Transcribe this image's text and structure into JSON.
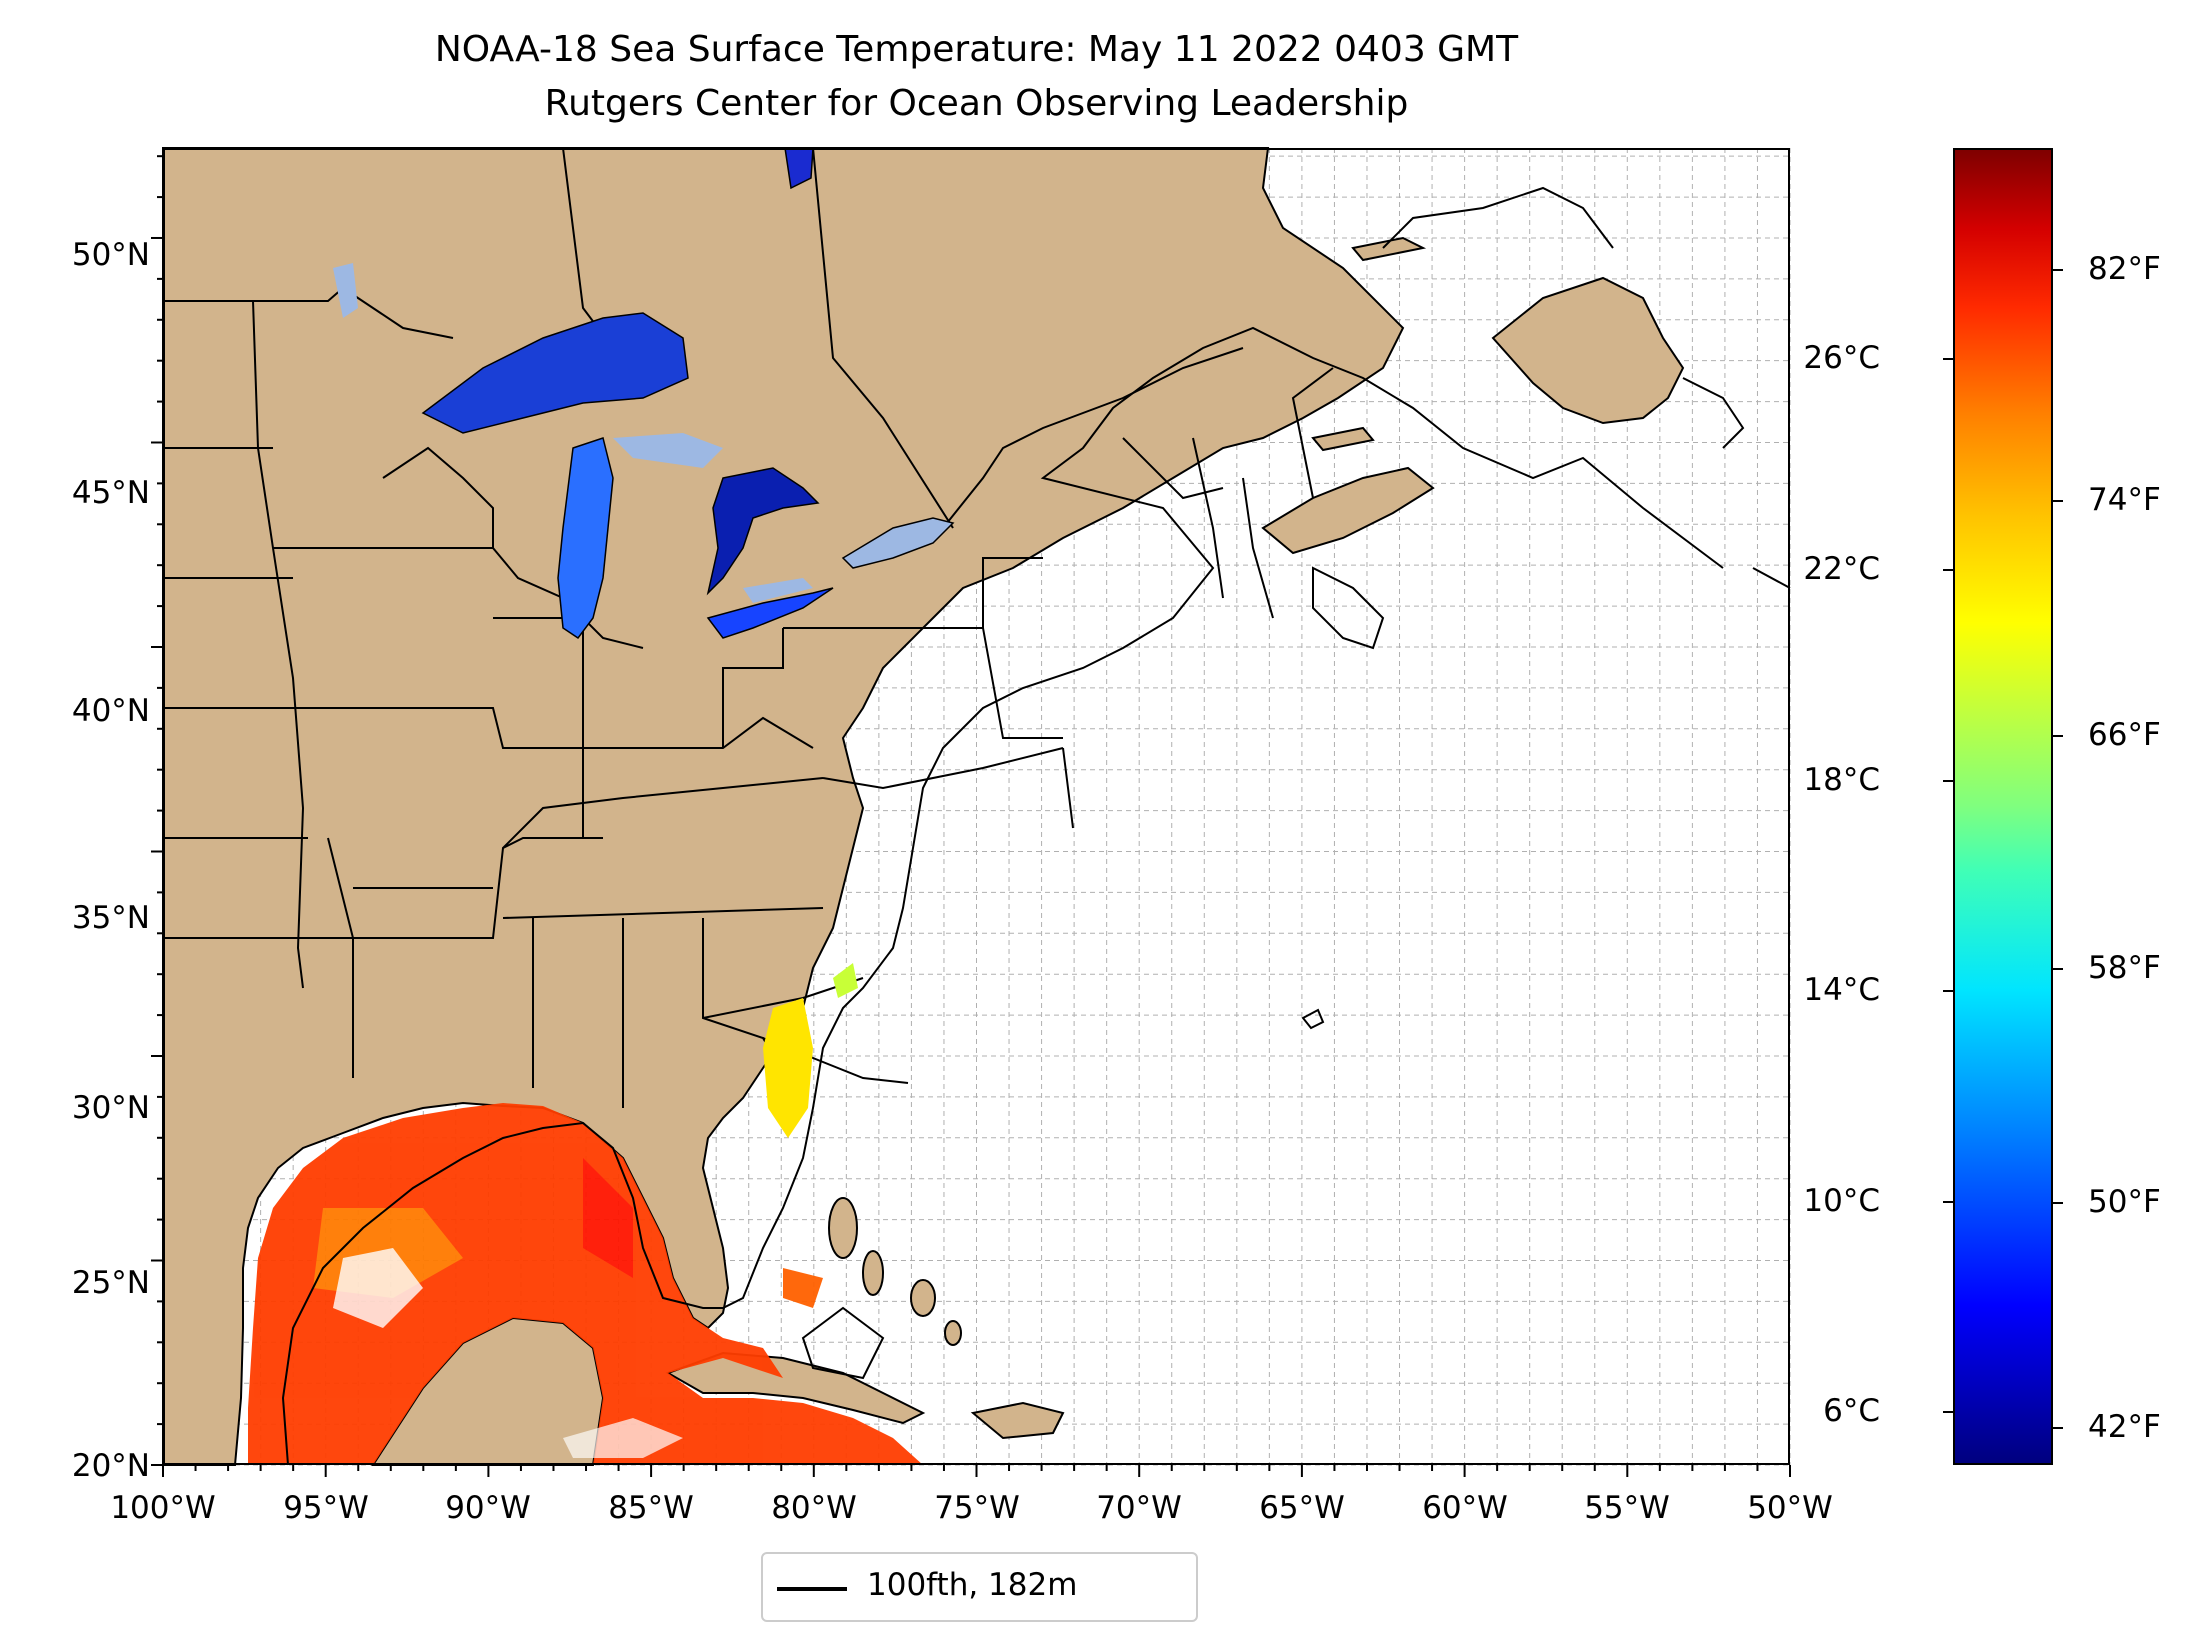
{
  "title_line1": "NOAA-18 Sea Surface Temperature: May 11 2022 0403 GMT",
  "title_line2": "Rutgers Center for Ocean Observing Leadership",
  "map": {
    "lon_range": [
      -100,
      -50
    ],
    "lat_range": [
      20,
      52.2
    ],
    "grid": "dashed gray, every 1 degree",
    "land_color": "#d2b48c",
    "lake_color": "#9db8e3",
    "lat_ticks": [
      "20°N",
      "25°N",
      "30°N",
      "35°N",
      "40°N",
      "45°N",
      "50°N"
    ],
    "lon_ticks": [
      "100°W",
      "95°W",
      "90°W",
      "85°W",
      "80°W",
      "75°W",
      "70°W",
      "65°W",
      "60°W",
      "55°W",
      "50°W"
    ]
  },
  "colorbar": {
    "celsius_ticks": [
      "6°C",
      "10°C",
      "14°C",
      "18°C",
      "22°C",
      "26°C"
    ],
    "fahrenheit_ticks": [
      "42°F",
      "50°F",
      "58°F",
      "66°F",
      "74°F",
      "82°F"
    ],
    "colormap": "jet"
  },
  "legend": {
    "label": "100fth, 182m"
  }
}
